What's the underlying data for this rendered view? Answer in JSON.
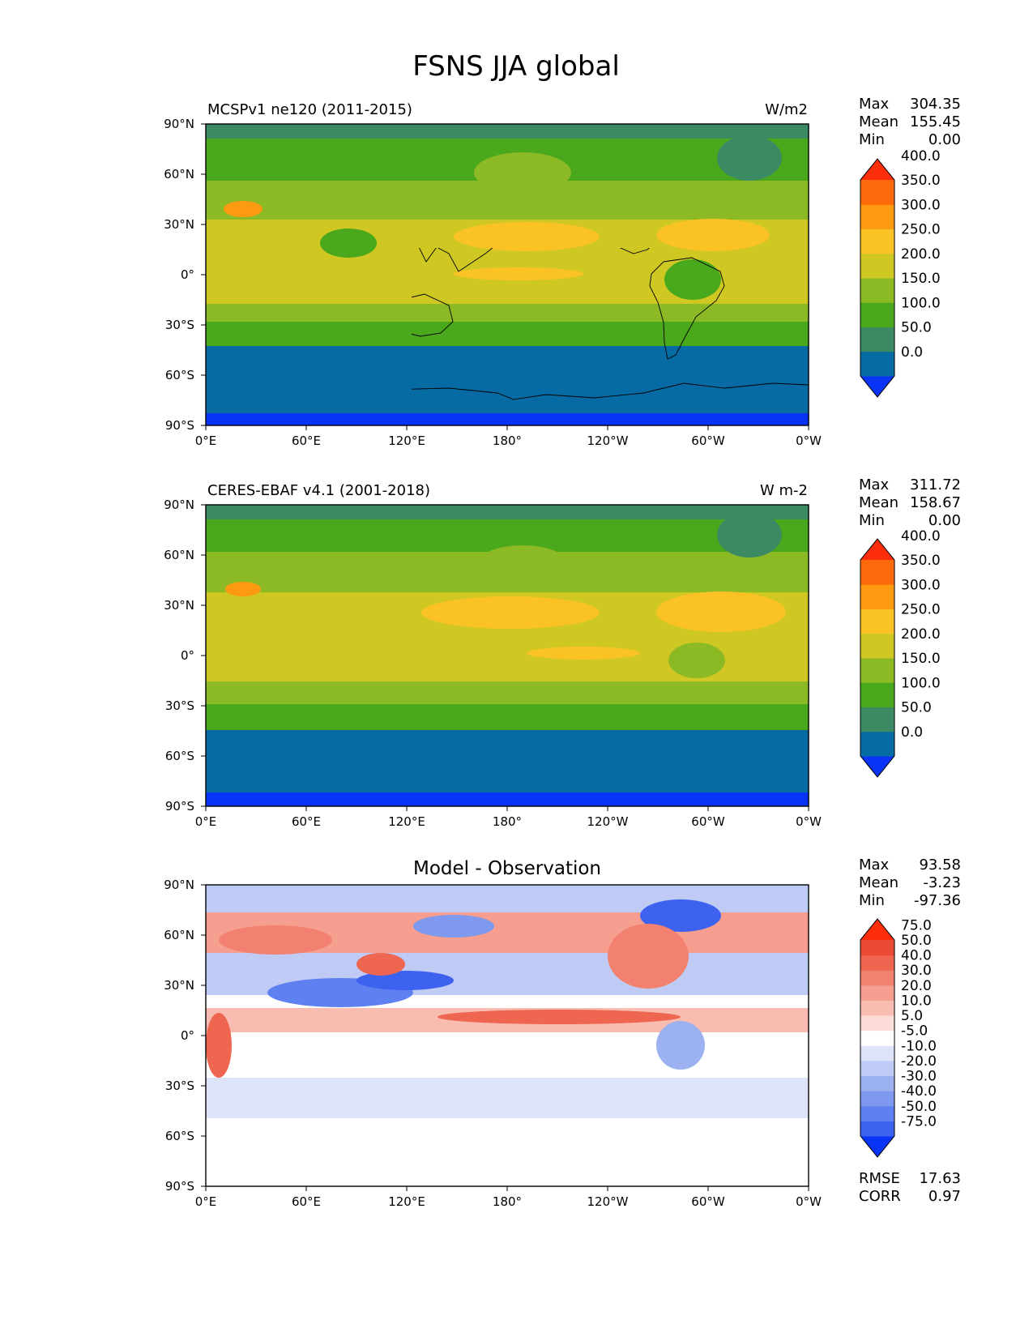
{
  "figure": {
    "title": "FSNS JJA global"
  },
  "colors": {
    "abs_levels": [
      "#0a34f5",
      "#066aa3",
      "#3b8a63",
      "#4aa81c",
      "#8cba24",
      "#cfc823",
      "#fbc226",
      "#fe9a12",
      "#fd6a0b",
      "#fe2d0a"
    ],
    "diff_levels": [
      "#0a34f5",
      "#3e62f0",
      "#5f80f0",
      "#7e99ee",
      "#9cb1f0",
      "#bfcbf4",
      "#dde3f9",
      "#ffffff",
      "#fbdcd6",
      "#f9bcb1",
      "#f69e8f",
      "#f2826f",
      "#ee6650",
      "#ea4936",
      "#fe2d0a"
    ],
    "land_outline": "#000000"
  },
  "chart_data": [
    {
      "type": "heatmap",
      "panel": "model",
      "title": "MCSPv1 ne120 (2011-2015)",
      "units": "W/m2",
      "xticks": [
        "0°E",
        "60°E",
        "120°E",
        "180°",
        "120°W",
        "60°W",
        "0°W"
      ],
      "yticks": [
        "90°N",
        "60°N",
        "30°N",
        "0°",
        "30°S",
        "60°S",
        "90°S"
      ],
      "xlim": [
        0,
        360
      ],
      "ylim": [
        -90,
        90
      ],
      "stats": {
        "max_label": "Max",
        "max": "304.35",
        "mean_label": "Mean",
        "mean": "155.45",
        "min_label": "Min",
        "min": "0.00"
      },
      "colorbar": {
        "levels": [
          "0.0",
          "50.0",
          "100.0",
          "150.0",
          "200.0",
          "250.0",
          "300.0",
          "350.0",
          "400.0"
        ],
        "extend": "both"
      }
    },
    {
      "type": "heatmap",
      "panel": "observation",
      "title": "CERES-EBAF v4.1 (2001-2018)",
      "units": "W m-2",
      "xticks": [
        "0°E",
        "60°E",
        "120°E",
        "180°",
        "120°W",
        "60°W",
        "0°W"
      ],
      "yticks": [
        "90°N",
        "60°N",
        "30°N",
        "0°",
        "30°S",
        "60°S",
        "90°S"
      ],
      "xlim": [
        0,
        360
      ],
      "ylim": [
        -90,
        90
      ],
      "stats": {
        "max_label": "Max",
        "max": "311.72",
        "mean_label": "Mean",
        "mean": "158.67",
        "min_label": "Min",
        "min": "0.00"
      },
      "colorbar": {
        "levels": [
          "0.0",
          "50.0",
          "100.0",
          "150.0",
          "200.0",
          "250.0",
          "300.0",
          "350.0",
          "400.0"
        ],
        "extend": "both"
      }
    },
    {
      "type": "heatmap",
      "panel": "difference",
      "title": "Model - Observation",
      "xticks": [
        "0°E",
        "60°E",
        "120°E",
        "180°",
        "120°W",
        "60°W",
        "0°W"
      ],
      "yticks": [
        "90°N",
        "60°N",
        "30°N",
        "0°",
        "30°S",
        "60°S",
        "90°S"
      ],
      "xlim": [
        0,
        360
      ],
      "ylim": [
        -90,
        90
      ],
      "stats": {
        "max_label": "Max",
        "max": "93.58",
        "mean_label": "Mean",
        "mean": "-3.23",
        "min_label": "Min",
        "min": "-97.36"
      },
      "metrics": {
        "rmse_label": "RMSE",
        "rmse": "17.63",
        "corr_label": "CORR",
        "corr": "0.97"
      },
      "colorbar": {
        "levels": [
          "-75.0",
          "-50.0",
          "-40.0",
          "-30.0",
          "-20.0",
          "-10.0",
          "-5.0",
          "5.0",
          "10.0",
          "20.0",
          "30.0",
          "40.0",
          "50.0",
          "75.0"
        ],
        "extend": "both"
      }
    }
  ]
}
